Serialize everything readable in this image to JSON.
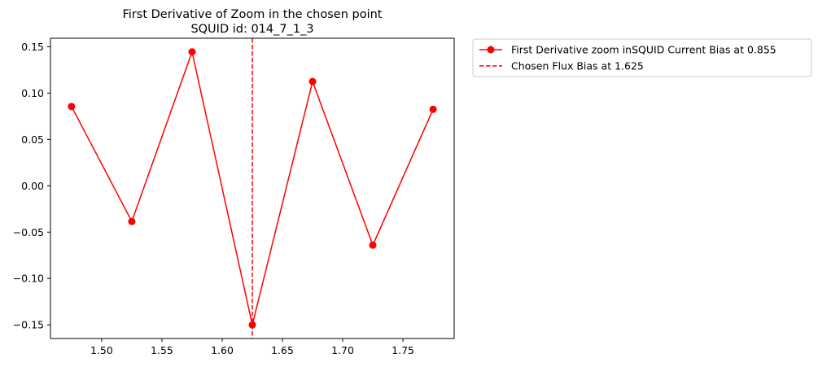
{
  "chart_data": {
    "type": "line",
    "title": "First Derivative of Zoom in the chosen point",
    "subtitle": "SQUID id: 014_7_1_3",
    "xlabel": "",
    "ylabel": "",
    "xlim": [
      1.4575,
      1.7925
    ],
    "ylim": [
      -0.1648,
      0.1592
    ],
    "xticks": [
      1.5,
      1.55,
      1.6,
      1.65,
      1.7,
      1.75
    ],
    "xtick_labels": [
      "1.50",
      "1.55",
      "1.60",
      "1.65",
      "1.70",
      "1.75"
    ],
    "yticks": [
      -0.15,
      -0.1,
      -0.05,
      0.0,
      0.05,
      0.1,
      0.15
    ],
    "ytick_labels": [
      "−0.15",
      "−0.10",
      "−0.05",
      "0.00",
      "0.05",
      "0.10",
      "0.15"
    ],
    "grid": false,
    "legend_position": "outside-upper-right",
    "series": [
      {
        "name": "First Derivative zoom inSQUID Current Bias at 0.855",
        "color": "#ff0000",
        "style": "solid-line-circle-markers",
        "x": [
          1.475,
          1.525,
          1.575,
          1.625,
          1.675,
          1.725,
          1.775
        ],
        "y": [
          0.0855,
          -0.0385,
          0.1445,
          -0.15,
          0.1125,
          -0.064,
          0.0825
        ]
      }
    ],
    "vlines": [
      {
        "name": "Chosen Flux Bias at 1.625",
        "x": 1.625,
        "color": "#ff0000",
        "style": "dashed"
      }
    ]
  }
}
